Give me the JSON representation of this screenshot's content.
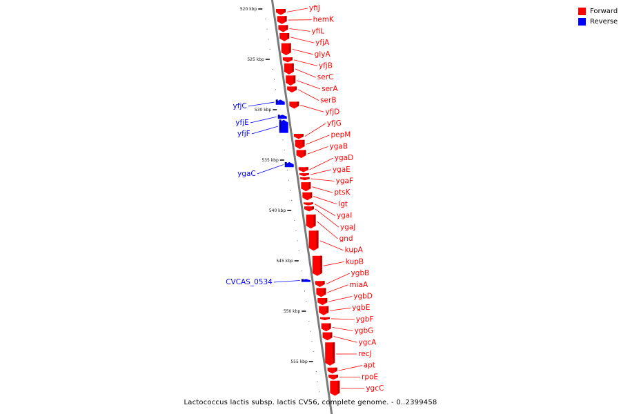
{
  "legend": [
    {
      "label": "Forward",
      "color": "#ff0000"
    },
    {
      "label": "Reverse",
      "color": "#0000ff"
    }
  ],
  "colors": {
    "forward": "#ff0000",
    "reverse": "#0000ff",
    "axis": "#7a7a7a",
    "tick": "#000000"
  },
  "caption": "Lactococcus lactis subsp. lactis CV56, complete genome. - 0..2399458",
  "axis_ticks": [
    {
      "label": "520 kbp",
      "kbp": 520
    },
    {
      "label": "525 kbp",
      "kbp": 525
    },
    {
      "label": "530 kbp",
      "kbp": 530
    },
    {
      "label": "535 kbp",
      "kbp": 535
    },
    {
      "label": "540 kbp",
      "kbp": 540
    },
    {
      "label": "545 kbp",
      "kbp": 545
    },
    {
      "label": "550 kbp",
      "kbp": 550
    },
    {
      "label": "555 kbp",
      "kbp": 555
    }
  ],
  "forward_genes": [
    {
      "name": "yfiJ",
      "start": 520.0,
      "end": 520.6
    },
    {
      "name": "hemK",
      "start": 520.7,
      "end": 521.5
    },
    {
      "name": "yfiL",
      "start": 521.6,
      "end": 522.3
    },
    {
      "name": "yfjA",
      "start": 522.4,
      "end": 523.2
    },
    {
      "name": "glyA",
      "start": 523.4,
      "end": 524.6
    },
    {
      "name": "yfjB",
      "start": 524.8,
      "end": 525.3
    },
    {
      "name": "serC",
      "start": 525.4,
      "end": 526.5
    },
    {
      "name": "serA",
      "start": 526.6,
      "end": 527.6
    },
    {
      "name": "serB",
      "start": 527.7,
      "end": 528.3
    },
    {
      "name": "yfjD",
      "start": 529.2,
      "end": 529.9
    },
    {
      "name": "yfjG",
      "start": 532.4,
      "end": 532.9
    },
    {
      "name": "pepM",
      "start": 533.0,
      "end": 533.9
    },
    {
      "name": "ygaB",
      "start": 534.0,
      "end": 534.8
    },
    {
      "name": "ygaD",
      "start": 535.7,
      "end": 536.2
    },
    {
      "name": "ygaE",
      "start": 536.3,
      "end": 536.6
    },
    {
      "name": "ygaF",
      "start": 536.7,
      "end": 537.0
    },
    {
      "name": "ptsK",
      "start": 537.2,
      "end": 538.1
    },
    {
      "name": "lgt",
      "start": 538.2,
      "end": 539.0
    },
    {
      "name": "ygaI",
      "start": 539.2,
      "end": 539.5
    },
    {
      "name": "ygaJ",
      "start": 539.6,
      "end": 540.1
    },
    {
      "name": "gnd",
      "start": 540.4,
      "end": 541.8
    },
    {
      "name": "kupA",
      "start": 542.0,
      "end": 544.0
    },
    {
      "name": "kupB",
      "start": 544.5,
      "end": 546.5
    },
    {
      "name": "ygbB",
      "start": 547.0,
      "end": 547.6
    },
    {
      "name": "miaA",
      "start": 547.7,
      "end": 548.6
    },
    {
      "name": "ygbD",
      "start": 548.7,
      "end": 549.4
    },
    {
      "name": "ygbE",
      "start": 549.5,
      "end": 550.4
    },
    {
      "name": "ygbF",
      "start": 550.6,
      "end": 550.9
    },
    {
      "name": "ygbG",
      "start": 551.2,
      "end": 552.0
    },
    {
      "name": "ygcA",
      "start": 552.1,
      "end": 552.9
    },
    {
      "name": "recJ",
      "start": 553.1,
      "end": 555.4
    },
    {
      "name": "apt",
      "start": 555.6,
      "end": 556.2
    },
    {
      "name": "rpoE",
      "start": 556.3,
      "end": 556.8
    },
    {
      "name": "ygcC",
      "start": 556.9,
      "end": 558.4
    }
  ],
  "reverse_genes": [
    {
      "name": "yfjC",
      "start": 529.0,
      "end": 529.5
    },
    {
      "name": "yfjE",
      "start": 530.5,
      "end": 530.9
    },
    {
      "name": "yfjF",
      "start": 531.0,
      "end": 532.3
    },
    {
      "name": "ygaC",
      "start": 535.2,
      "end": 535.7
    },
    {
      "name": "CVCAS_0534",
      "start": 546.8,
      "end": 547.1
    }
  ]
}
